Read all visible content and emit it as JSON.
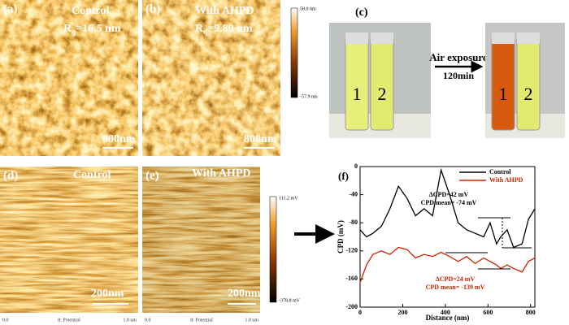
{
  "panels": {
    "a": {
      "label": "(a)",
      "title": "Control",
      "r": "R",
      "r_sub": "q",
      "r_value": "=16.5 nm",
      "scale": "800nm"
    },
    "b": {
      "label": "(b)",
      "title": "With AHPD",
      "r": "R",
      "r_sub": "q",
      "r_value": "=9.89 nm",
      "scale": "800nm",
      "cbar_max": "58.0 nm",
      "cbar_min": "-57.9 nm"
    },
    "c": {
      "label": "(c)",
      "arrow_top": "Air exposure",
      "arrow_bottom": "120min",
      "vials": [
        "1",
        "2"
      ]
    },
    "d": {
      "label": "(d)",
      "title": "Control",
      "scale": "200nm",
      "axis_start": "0.0",
      "axis_name": "8: Potential",
      "axis_end": "1.0 um"
    },
    "e": {
      "label": "(e)",
      "title": "With AHPD",
      "scale": "200nm",
      "cbar_max": "111.2 mV",
      "cbar_min": "-378.8 mV",
      "axis_start": "0.0",
      "axis_name": "8: Potential",
      "axis_end": "1.0 um"
    }
  },
  "chart_data": {
    "type": "line",
    "label": "(f)",
    "x_label": "Distance (nm)",
    "y_label": "CPD (mV)",
    "x": [
      0,
      30,
      60,
      100,
      140,
      180,
      220,
      260,
      300,
      340,
      380,
      420,
      460,
      500,
      540,
      580,
      610,
      640,
      660,
      690,
      720,
      760,
      790,
      820
    ],
    "series": [
      {
        "name": "Control",
        "color": "#000000",
        "values": [
          -90,
          -100,
          -95,
          -85,
          -60,
          -28,
          -45,
          -70,
          -60,
          -70,
          -5,
          -40,
          -80,
          -90,
          -95,
          -100,
          -80,
          -110,
          -100,
          -90,
          -115,
          -110,
          -75,
          -60
        ]
      },
      {
        "name": "With AHPD",
        "color": "#cc2200",
        "values": [
          -165,
          -140,
          -125,
          -120,
          -125,
          -115,
          -118,
          -130,
          -125,
          -128,
          -122,
          -128,
          -135,
          -128,
          -138,
          -130,
          -135,
          -140,
          -145,
          -140,
          -145,
          -150,
          -135,
          -130
        ]
      }
    ],
    "xlim": [
      0,
      820
    ],
    "xticks": [
      0,
      200,
      400,
      600,
      800
    ],
    "ylim": [
      -200,
      0
    ],
    "yticks": [
      0,
      -40,
      -80,
      -120,
      -160,
      -200
    ],
    "annotations": [
      {
        "text": "ΔCPD=42 mV",
        "color": "#000000"
      },
      {
        "text": "CPD mean= -74 mV",
        "color": "#000000"
      },
      {
        "text": "ΔCPD=24 mV",
        "color": "#cc2200"
      },
      {
        "text": "CPD mean= -139 mV",
        "color": "#cc2200"
      }
    ],
    "legend": "top-right"
  }
}
